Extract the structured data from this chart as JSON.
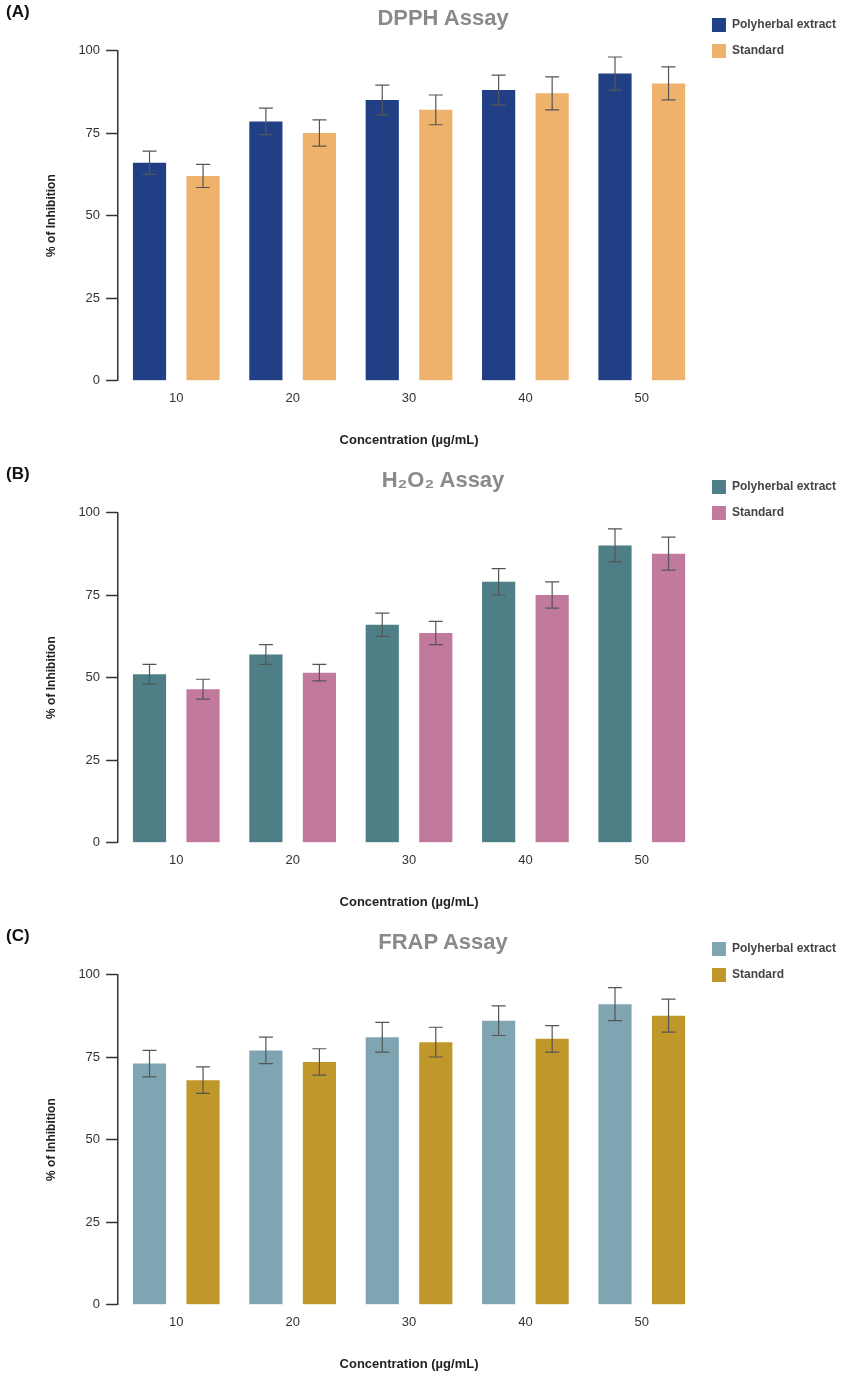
{
  "chart_data": [
    {
      "type": "bar",
      "title": "DPPH Assay",
      "annotations": [
        "(A)"
      ],
      "xlabel": "Concentration (µg/mL)",
      "ylabel": "% of Inhibition",
      "categories": [
        "10",
        "20",
        "30",
        "40",
        "50"
      ],
      "ylim": [
        0,
        100
      ],
      "yticks": [
        0,
        25,
        50,
        75,
        100
      ],
      "legend": "top right",
      "series": [
        {
          "name": "Polyherbal extract",
          "color": "#213f85",
          "values": [
            66,
            78.5,
            85,
            88,
            93
          ],
          "errors": [
            3.5,
            4,
            4.5,
            4.5,
            5
          ]
        },
        {
          "name": "Standard",
          "color": "#efb26c",
          "values": [
            62,
            75,
            82,
            87,
            90
          ],
          "errors": [
            3.5,
            4,
            4.5,
            5,
            5
          ]
        }
      ]
    },
    {
      "type": "bar",
      "title": "H₂O₂ Assay",
      "annotations": [
        "(B)"
      ],
      "xlabel": "Concentration (µg/mL)",
      "ylabel": "% of Inhibition",
      "categories": [
        "10",
        "20",
        "30",
        "40",
        "50"
      ],
      "ylim": [
        0,
        100
      ],
      "yticks": [
        0,
        25,
        50,
        75,
        100
      ],
      "legend": "top right",
      "series": [
        {
          "name": "Polyherbal extract",
          "color": "#4e7f86",
          "values": [
            51,
            57,
            66,
            79,
            90
          ],
          "errors": [
            3,
            3,
            3.5,
            4,
            5
          ]
        },
        {
          "name": "Standard",
          "color": "#c27a9c",
          "values": [
            46.5,
            51.5,
            63.5,
            75,
            87.5
          ],
          "errors": [
            3,
            2.5,
            3.5,
            4,
            5
          ]
        }
      ]
    },
    {
      "type": "bar",
      "title": "FRAP Assay",
      "annotations": [
        "(C)"
      ],
      "xlabel": "Concentration (µg/mL)",
      "ylabel": "% of Inhibition",
      "categories": [
        "10",
        "20",
        "30",
        "40",
        "50"
      ],
      "ylim": [
        0,
        100
      ],
      "yticks": [
        0,
        25,
        50,
        75,
        100
      ],
      "legend": "top right",
      "series": [
        {
          "name": "Polyherbal extract",
          "color": "#7fa5b2",
          "values": [
            73,
            77,
            81,
            86,
            91
          ],
          "errors": [
            4,
            4,
            4.5,
            4.5,
            5
          ]
        },
        {
          "name": "Standard",
          "color": "#c0972a",
          "values": [
            68,
            73.5,
            79.5,
            80.5,
            87.5
          ],
          "errors": [
            4,
            4,
            4.5,
            4,
            5
          ]
        }
      ]
    }
  ]
}
